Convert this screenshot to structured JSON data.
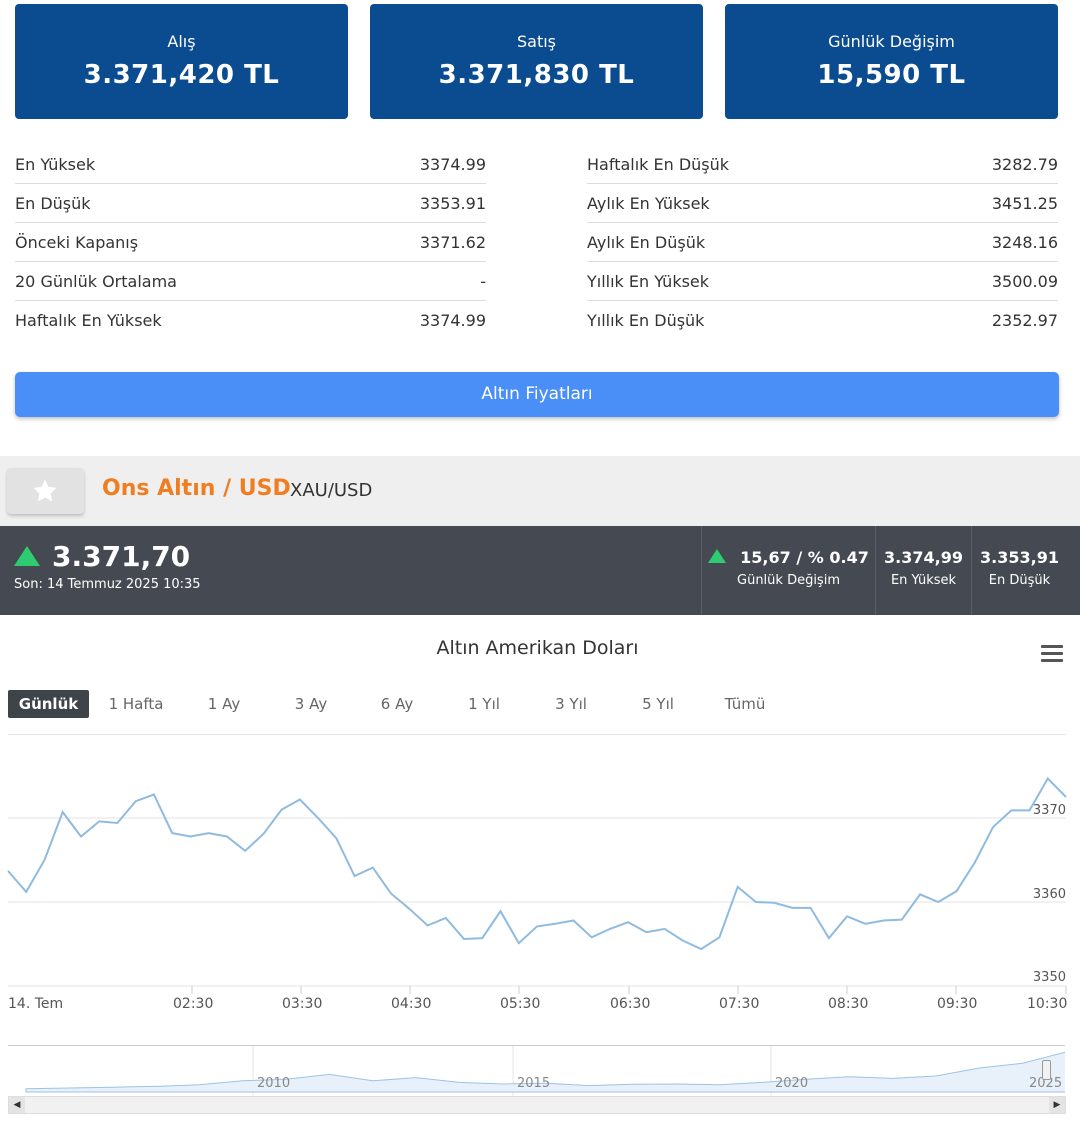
{
  "cards": [
    {
      "label": "Alış",
      "value": "3.371,420 TL"
    },
    {
      "label": "Satış",
      "value": "3.371,830 TL"
    },
    {
      "label": "Günlük Değişim",
      "value": "15,590 TL"
    }
  ],
  "stats_left": [
    {
      "label": "En Yüksek",
      "value": "3374.99"
    },
    {
      "label": "En Düşük",
      "value": "3353.91"
    },
    {
      "label": "Önceki Kapanış",
      "value": "3371.62"
    },
    {
      "label": "20 Günlük Ortalama",
      "value": "-"
    },
    {
      "label": "Haftalık En Yüksek",
      "value": "3374.99"
    }
  ],
  "stats_right": [
    {
      "label": "Haftalık En Düşük",
      "value": "3282.79"
    },
    {
      "label": "Aylık En Yüksek",
      "value": "3451.25"
    },
    {
      "label": "Aylık En Düşük",
      "value": "3248.16"
    },
    {
      "label": "Yıllık En Yüksek",
      "value": "3500.09"
    },
    {
      "label": "Yıllık En Düşük",
      "value": "2352.97"
    }
  ],
  "prices_button": "Altın Fiyatları",
  "instrument": {
    "title": "Ons Altın / USD",
    "code": "XAU/USD"
  },
  "ticker": {
    "price": "3.371,70",
    "last_update": "Son: 14 Temmuz 2025 10:35",
    "change_value": "15,67 / % 0.47",
    "change_label": "Günlük Değişim",
    "high_value": "3.374,99",
    "high_label": "En Yüksek",
    "low_value": "3.353,91",
    "low_label": "En Düşük"
  },
  "colors": {
    "card_bg": "#0b4b8f",
    "accent_orange": "#ef7d22",
    "button_blue": "#4a8ef7",
    "up_green": "#2ecc71",
    "line": "#8fbbe0"
  },
  "range_buttons": [
    "Günlük",
    "1 Hafta",
    "1 Ay",
    "3 Ay",
    "6 Ay",
    "1 Yıl",
    "3 Yıl",
    "5 Yıl",
    "Tümü"
  ],
  "active_range": "Günlük",
  "chart_data": {
    "type": "line",
    "title": "Altın Amerikan Doları",
    "x_ticks": [
      "14. Tem",
      "02:30",
      "03:30",
      "04:30",
      "05:30",
      "06:30",
      "07:30",
      "08:30",
      "09:30",
      "10:30"
    ],
    "y_ticks": [
      "3350",
      "3360",
      "3370"
    ],
    "ylim": [
      3350,
      3375
    ],
    "series": [
      {
        "values": [
          3363.7,
          3361.2,
          3365.0,
          3370.7,
          3367.8,
          3369.6,
          3369.4,
          3372.0,
          3372.8,
          3368.2,
          3367.8,
          3368.2,
          3367.8,
          3366.1,
          3368.1,
          3371.0,
          3372.2,
          3370.0,
          3367.6,
          3363.1,
          3364.1,
          3361.0,
          3359.2,
          3357.2,
          3358.1,
          3355.6,
          3355.7,
          3358.9,
          3355.1,
          3357.1,
          3357.4,
          3357.8,
          3355.8,
          3356.8,
          3357.6,
          3356.4,
          3356.8,
          3355.4,
          3354.4,
          3355.8,
          3361.8,
          3360.0,
          3359.9,
          3359.3,
          3359.3,
          3355.7,
          3358.3,
          3357.4,
          3357.8,
          3357.9,
          3360.9,
          3360.0,
          3361.3,
          3364.7,
          3368.9,
          3370.9,
          3370.9,
          3374.7,
          3372.5
        ]
      }
    ],
    "navigator": {
      "x_ticks": [
        "2010",
        "2015",
        "2020",
        "2025"
      ],
      "values": [
        1,
        1.05,
        1.1,
        1.15,
        1.25,
        1.5,
        1.6,
        1.9,
        1.5,
        1.7,
        1.4,
        1.3,
        1.35,
        1.2,
        1.28,
        1.3,
        1.25,
        1.4,
        1.6,
        1.75,
        1.65,
        1.8,
        2.3,
        2.6,
        3.3
      ]
    }
  }
}
